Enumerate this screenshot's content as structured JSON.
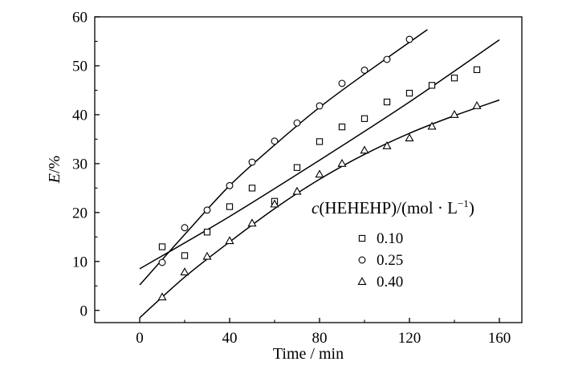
{
  "chart_data": {
    "type": "scatter",
    "xlabel": "Time / min",
    "ylabel": "E/%",
    "ylabel_parts": {
      "var": "E",
      "unit": "/%"
    },
    "xlim": [
      -20,
      170
    ],
    "ylim": [
      -2.5,
      60
    ],
    "xticks": [
      0,
      40,
      80,
      120,
      160
    ],
    "yticks": [
      0,
      10,
      20,
      30,
      40,
      50,
      60
    ],
    "grid": false,
    "legend": {
      "title": "c(HEHEHP)/(mol · L⁻¹)",
      "title_parts": {
        "var": "c",
        "rest": "(HEHEHP)/(mol · L",
        "sup": "−1",
        "close": ")"
      },
      "placement": "right",
      "entries": [
        "0.10",
        "0.25",
        "0.40"
      ]
    },
    "series": [
      {
        "name": "0.10",
        "marker": "square",
        "x": [
          10,
          20,
          30,
          40,
          50,
          60,
          70,
          80,
          90,
          100,
          110,
          120,
          130,
          140,
          150
        ],
        "y": [
          13,
          11.2,
          16,
          21.2,
          25,
          22.3,
          29.2,
          34.5,
          37.5,
          39.2,
          42.6,
          44.4,
          46,
          47.5,
          49.2
        ],
        "fit": {
          "x": [
            0,
            40,
            80,
            120,
            160
          ],
          "y": [
            8.5,
            19.2,
            30.7,
            42.6,
            55.3
          ]
        }
      },
      {
        "name": "0.25",
        "marker": "circle",
        "x": [
          10,
          20,
          30,
          40,
          50,
          60,
          70,
          80,
          90,
          100,
          110,
          120
        ],
        "y": [
          9.8,
          16.9,
          20.5,
          25.5,
          30.3,
          34.6,
          38.3,
          41.8,
          46.4,
          49.1,
          51.3,
          55.4
        ],
        "fit": {
          "x": [
            0,
            20,
            40,
            60,
            80,
            100,
            128
          ],
          "y": [
            5.2,
            15.5,
            25.5,
            33.8,
            41.5,
            48.3,
            57.4
          ]
        }
      },
      {
        "name": "0.40",
        "marker": "triangle",
        "x": [
          10,
          20,
          30,
          40,
          50,
          60,
          70,
          80,
          90,
          100,
          110,
          120,
          130,
          140,
          150
        ],
        "y": [
          2.7,
          7.8,
          11,
          14.2,
          17.8,
          21.7,
          24.3,
          27.8,
          30,
          32.7,
          33.6,
          35.2,
          37.6,
          40,
          41.8
        ],
        "fit": {
          "x": [
            0,
            20,
            40,
            60,
            80,
            100,
            120,
            140,
            160
          ],
          "y": [
            -1.5,
            6.8,
            14,
            20.8,
            26.8,
            31.9,
            36.2,
            39.8,
            43
          ]
        }
      }
    ]
  }
}
